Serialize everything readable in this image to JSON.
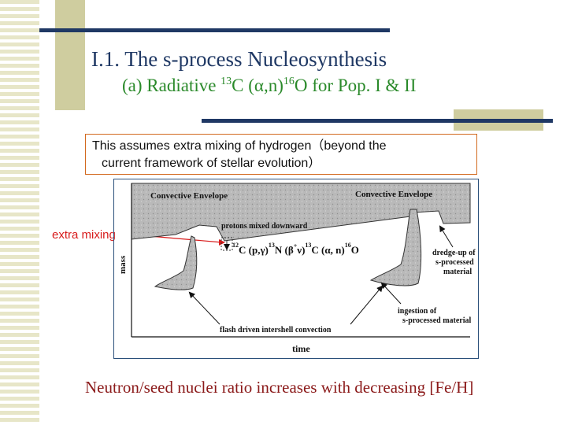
{
  "slide": {
    "title": "I.1.  The s-process Nucleosynthesis",
    "subtitle_pre": "(a) Radiative ",
    "subtitle_sup1": "13",
    "subtitle_mid": "C (α,n)",
    "subtitle_sup2": "16",
    "subtitle_post": "O for Pop.  I & II",
    "note_line1": "This  assumes  extra mixing of hydrogen（beyond  the",
    "note_line2": "current  framework  of  stellar  evolution）",
    "extra_mixing_label": "extra mixing",
    "bottom_text": "Neutron/seed nuclei ratio increases with decreasing [Fe/H]"
  },
  "figure": {
    "convective_envelope_left": "Convective Envelope",
    "convective_envelope_right": "Convective Envelope",
    "protons_label": "protons mixed downward",
    "reaction": {
      "m1": "12",
      "e1": "C (",
      "p1": "p,γ",
      "c1": ")",
      "m2": "13",
      "e2": "N (",
      "p2": "β",
      "p2sup": "+",
      "p2b": "ν",
      "c2": ")",
      "m3": "13",
      "e3": "C (",
      "p3": "α, n",
      "c3": ")",
      "m4": "16",
      "e4": "O"
    },
    "dredge_label": [
      "dredge-up of",
      "s-processed",
      "material"
    ],
    "ingestion_label": [
      "ingestion of",
      "s-processed material"
    ],
    "flash_label": "flash driven intershell convection",
    "y_axis_label": "mass",
    "x_axis_label": "time"
  },
  "colors": {
    "navy": "#1f3864",
    "khaki": "#cfcd9f",
    "green": "#2b8a2b",
    "red": "#d81b1b",
    "maroon": "#8b1a1a",
    "note_border": "#d2691e"
  }
}
